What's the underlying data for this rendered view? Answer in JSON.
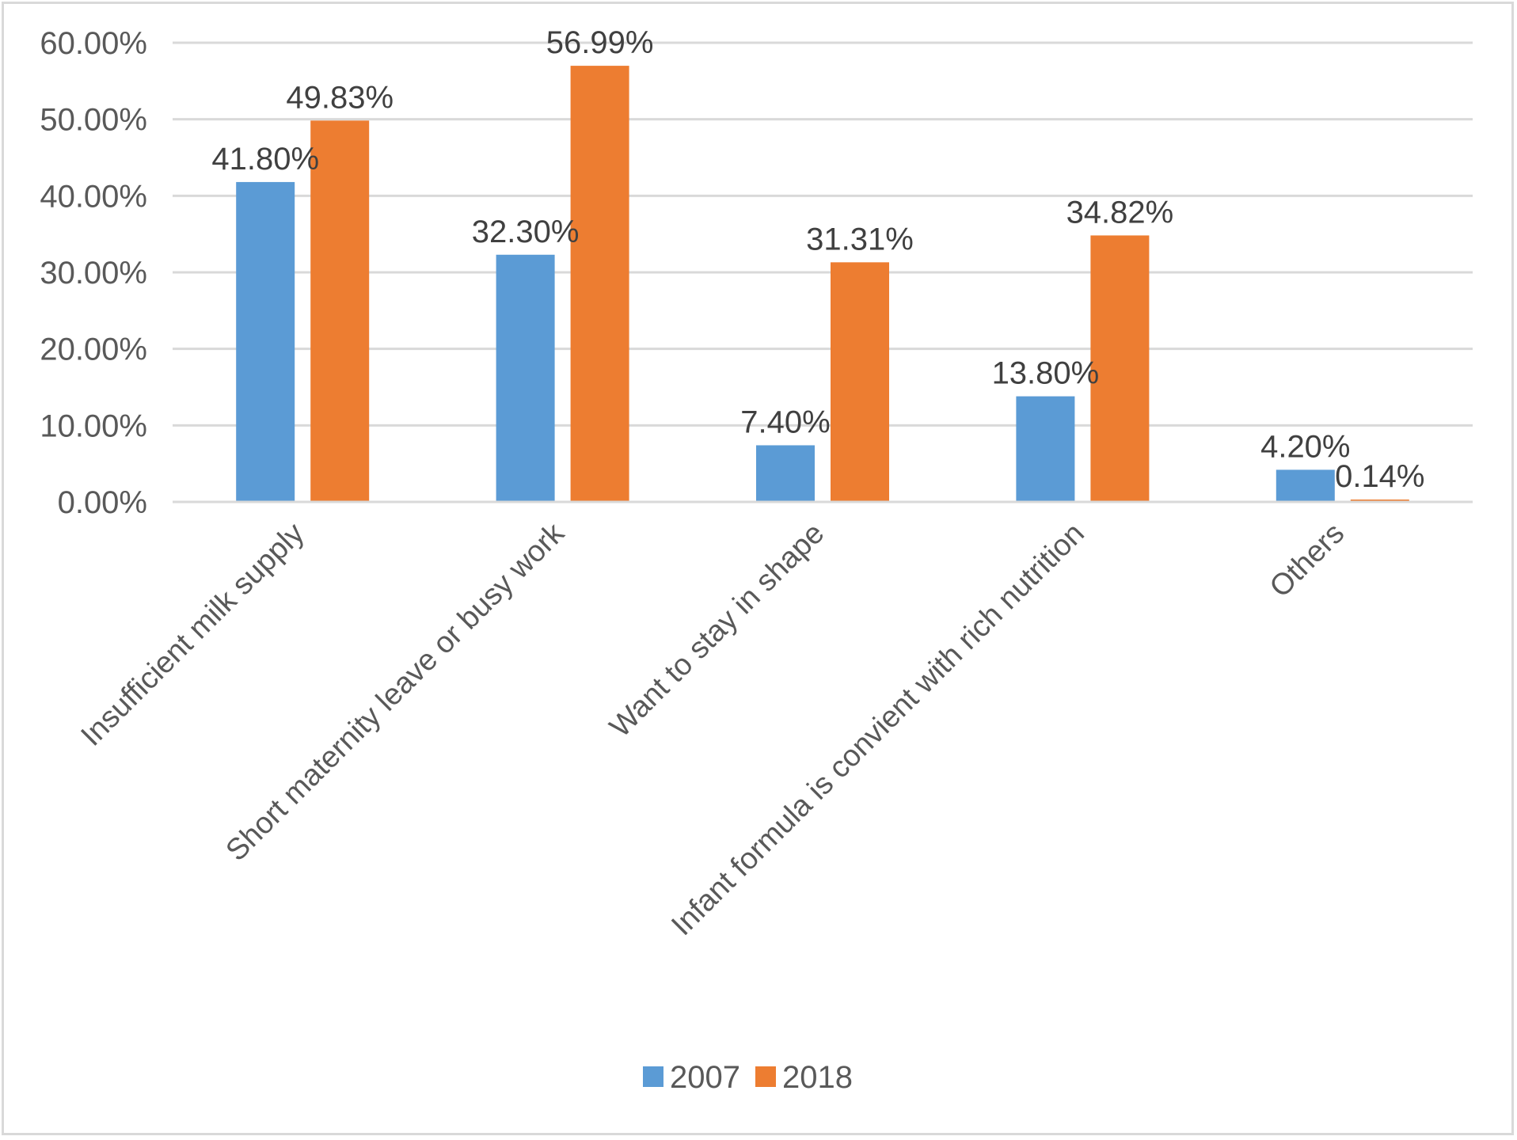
{
  "chart_data": {
    "type": "bar",
    "title": "",
    "xlabel": "",
    "ylabel": "",
    "categories": [
      "Insufficient milk supply",
      "Short maternity leave or busy work",
      "Want to stay in shape",
      "Infant formula is convient with rich nutrition",
      "Others"
    ],
    "series": [
      {
        "name": "2007",
        "color": "#5b9bd5",
        "values": [
          41.8,
          32.3,
          7.4,
          13.8,
          4.2
        ],
        "labels": [
          "41.80%",
          "32.30%",
          "7.40%",
          "13.80%",
          "4.20%"
        ]
      },
      {
        "name": "2018",
        "color": "#ed7d31",
        "values": [
          49.83,
          56.99,
          31.31,
          34.82,
          0.14
        ],
        "labels": [
          "49.83%",
          "56.99%",
          "31.31%",
          "34.82%",
          "0.14%"
        ]
      }
    ],
    "ylim": [
      0,
      60
    ],
    "yticks": [
      0,
      10,
      20,
      30,
      40,
      50,
      60
    ],
    "ytick_labels": [
      "0.00%",
      "10.00%",
      "20.00%",
      "30.00%",
      "40.00%",
      "50.00%",
      "60.00%"
    ],
    "grid": true,
    "legend": "bottom-center"
  }
}
